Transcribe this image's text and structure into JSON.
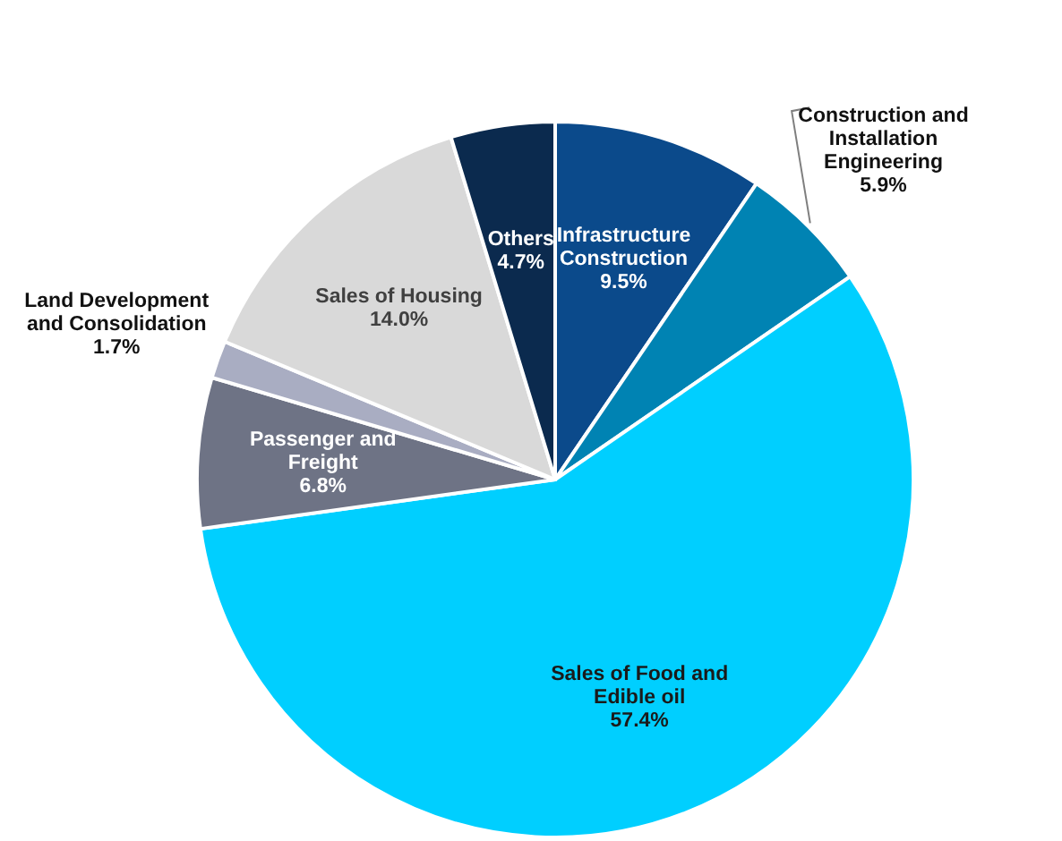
{
  "chart_data": {
    "type": "pie",
    "categories": [
      "Infrastructure Construction",
      "Construction and Installation Engineering",
      "Sales of Food and Edible oil",
      "Passenger and Freight",
      "Land Development and Consolidation",
      "Sales of Housing",
      "Others"
    ],
    "values": [
      9.5,
      5.9,
      57.4,
      6.8,
      1.7,
      14.0,
      4.7
    ],
    "colors": [
      "#0b4a8b",
      "#0083b3",
      "#00cfff",
      "#6e7385",
      "#a9adc2",
      "#d9d9d9",
      "#0b2a4e"
    ],
    "value_labels": [
      "9.5%",
      "5.9%",
      "57.4%",
      "6.8%",
      "1.7%",
      "14.0%",
      "4.7%"
    ]
  }
}
